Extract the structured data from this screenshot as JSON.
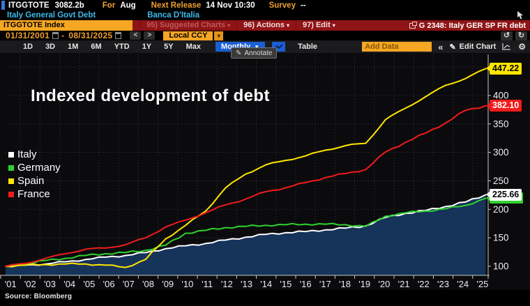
{
  "terminal": {
    "security": "ITGGTOTE",
    "value": "3082.2b",
    "for_label": "For",
    "for_value": "Aug",
    "next_release_label": "Next Release",
    "next_release_value": "14 Nov 10:30",
    "survey_label": "Survey",
    "survey_value": "--",
    "description": "Italy General Govt Debt",
    "source_bank": "Banca D'Italia"
  },
  "redbar": {
    "ticker_field": "ITGGTOTE Index",
    "suggested_charts": "95) Suggested Charts",
    "actions": "96) Actions",
    "edit": "97) Edit",
    "chart_ref": "G 2348: Italy GER SP FR debt"
  },
  "controls": {
    "date_from": "01/31/2001",
    "date_separator": "-",
    "date_to": "08/31/2025",
    "prev_label": "<",
    "next_label": ">",
    "currency": "Local CCY",
    "ranges": [
      "1D",
      "3D",
      "1M",
      "6M",
      "YTD",
      "1Y",
      "5Y",
      "Max"
    ],
    "period": "Monthly",
    "table_label": "Table",
    "add_data_placeholder": "Add Data",
    "collapse_label": "«",
    "edit_chart_label": "Edit Chart",
    "annotate_label": "Annotate",
    "undo_label": "↺",
    "redo_label": "↻"
  },
  "chart_data": {
    "type": "line",
    "title": "Indexed development of debt",
    "source": "Source: Bloomberg",
    "categories": [
      "'01",
      "'02",
      "'03",
      "'04",
      "'05",
      "'06",
      "'07",
      "'08",
      "'09",
      "'10",
      "'11",
      "'12",
      "'13",
      "'14",
      "'15",
      "'16",
      "'17",
      "'18",
      "'19",
      "'20",
      "'21",
      "'22",
      "'23",
      "'24",
      "'25"
    ],
    "y_ticks": [
      100,
      150,
      200,
      250,
      300,
      350,
      400
    ],
    "ylim": [
      88,
      462
    ],
    "grid": "dotted",
    "legend_position": "middle-left",
    "series": [
      {
        "name": "Italy",
        "color": "#ffffff",
        "area_fill": "#17355e",
        "values": [
          100,
          102,
          104,
          108,
          112,
          116,
          119,
          124,
          131,
          136,
          140,
          146,
          151,
          156,
          159,
          161,
          164,
          167,
          171,
          186,
          193,
          198,
          205,
          213,
          225.66
        ],
        "last_value": 225.66,
        "badge_text": "225.66",
        "badge_bg": "#ffffff",
        "badge_fg": "#000000"
      },
      {
        "name": "Germany",
        "color": "#2fd32f",
        "area_fill": null,
        "values": [
          100,
          104,
          110,
          114,
          119,
          122,
          124,
          128,
          137,
          158,
          163,
          168,
          170,
          172,
          173,
          174,
          174,
          173,
          170,
          188,
          194,
          197,
          201,
          207,
          219.5
        ],
        "last_value": 219.5,
        "badge_text": "",
        "badge_bg": "#2fd32f",
        "badge_fg": "#000000"
      },
      {
        "name": "Spain",
        "color": "#ffe600",
        "area_fill": null,
        "values": [
          100,
          102,
          103,
          104,
          104,
          102,
          98,
          112,
          148,
          172,
          197,
          238,
          262,
          278,
          286,
          294,
          304,
          312,
          316,
          358,
          378,
          398,
          418,
          430,
          447.22
        ],
        "last_value": 447.22,
        "badge_text": "447.22",
        "badge_bg": "#ffe600",
        "badge_fg": "#000000"
      },
      {
        "name": "France",
        "color": "#f21b1b",
        "area_fill": null,
        "values": [
          100,
          105,
          114,
          122,
          130,
          132,
          138,
          150,
          169,
          181,
          194,
          208,
          218,
          231,
          238,
          247,
          256,
          263,
          270,
          301,
          318,
          334,
          352,
          374,
          382.1
        ],
        "last_value": 382.1,
        "badge_text": "382.10",
        "badge_bg": "#f21b1b",
        "badge_fg": "#ffffff"
      }
    ]
  }
}
